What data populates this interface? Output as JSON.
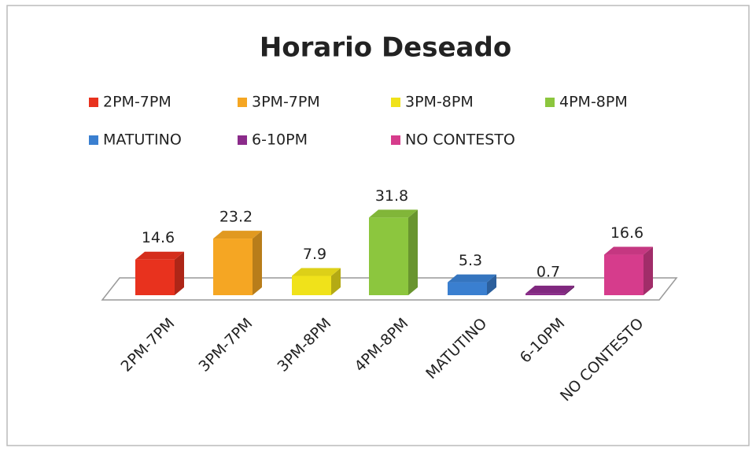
{
  "chart_data": {
    "type": "bar3d",
    "title": "Horario Deseado",
    "categories": [
      "2PM-7PM",
      "3PM-7PM",
      "3PM-8PM",
      "4PM-8PM",
      "MATUTINO",
      "6-10PM",
      "NO CONTESTO"
    ],
    "values": [
      14.6,
      23.2,
      7.9,
      31.8,
      5.3,
      0.7,
      16.6
    ],
    "colors": [
      "#e8321e",
      "#f5a623",
      "#f0e21a",
      "#8cc63e",
      "#3a7fd0",
      "#8b2b8a",
      "#d63c8c"
    ],
    "legend": "top"
  }
}
